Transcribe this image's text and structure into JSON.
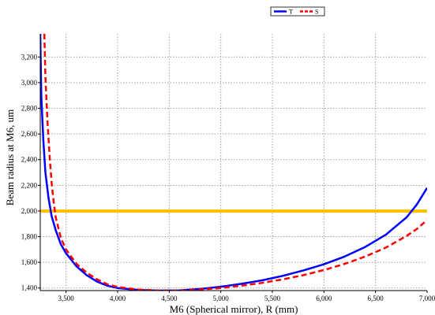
{
  "chart_data": {
    "type": "line",
    "xlabel": "M6 (Spherical mirror), R (mm)",
    "ylabel": "Beam radius at M6, um",
    "xlim": [
      3250,
      7000
    ],
    "ylim": [
      1380,
      3380
    ],
    "x_ticks": [
      {
        "value": 3500,
        "label": "3,500"
      },
      {
        "value": 4000,
        "label": "4,000"
      },
      {
        "value": 4500,
        "label": "4,500"
      },
      {
        "value": 5000,
        "label": "5,000"
      },
      {
        "value": 5500,
        "label": "5,500"
      },
      {
        "value": 6000,
        "label": "6,000"
      },
      {
        "value": 6500,
        "label": "6,500"
      },
      {
        "value": 7000,
        "label": "7,000"
      }
    ],
    "y_ticks": [
      {
        "value": 1400,
        "label": "1,400"
      },
      {
        "value": 1600,
        "label": "1,600"
      },
      {
        "value": 1800,
        "label": "1,800"
      },
      {
        "value": 2000,
        "label": "2,000"
      },
      {
        "value": 2200,
        "label": "2,200"
      },
      {
        "value": 2400,
        "label": "2,400"
      },
      {
        "value": 2600,
        "label": "2,600"
      },
      {
        "value": 2800,
        "label": "2,800"
      },
      {
        "value": 3000,
        "label": "3,000"
      },
      {
        "value": 3200,
        "label": "3,200"
      }
    ],
    "grid": true,
    "grid_style": "dotted",
    "legend_position": "top-right",
    "series": [
      {
        "name": "T",
        "color": "#0000ff",
        "style": "solid",
        "points": [
          [
            3250,
            3380
          ],
          [
            3260,
            2900
          ],
          [
            3280,
            2550
          ],
          [
            3300,
            2300
          ],
          [
            3330,
            2100
          ],
          [
            3360,
            1960
          ],
          [
            3400,
            1850
          ],
          [
            3450,
            1740
          ],
          [
            3500,
            1670
          ],
          [
            3600,
            1570
          ],
          [
            3700,
            1500
          ],
          [
            3800,
            1450
          ],
          [
            3900,
            1418
          ],
          [
            4000,
            1400
          ],
          [
            4200,
            1385
          ],
          [
            4400,
            1380
          ],
          [
            4600,
            1382
          ],
          [
            4800,
            1393
          ],
          [
            5000,
            1410
          ],
          [
            5200,
            1433
          ],
          [
            5400,
            1460
          ],
          [
            5600,
            1495
          ],
          [
            5800,
            1537
          ],
          [
            6000,
            1585
          ],
          [
            6200,
            1645
          ],
          [
            6400,
            1720
          ],
          [
            6600,
            1815
          ],
          [
            6800,
            1950
          ],
          [
            6900,
            2050
          ],
          [
            7000,
            2180
          ]
        ]
      },
      {
        "name": "S",
        "color": "#ff0000",
        "style": "dashed",
        "points": [
          [
            3290,
            3380
          ],
          [
            3300,
            3050
          ],
          [
            3320,
            2700
          ],
          [
            3340,
            2430
          ],
          [
            3360,
            2220
          ],
          [
            3380,
            2070
          ],
          [
            3400,
            1950
          ],
          [
            3450,
            1790
          ],
          [
            3500,
            1700
          ],
          [
            3600,
            1590
          ],
          [
            3700,
            1520
          ],
          [
            3800,
            1467
          ],
          [
            3900,
            1430
          ],
          [
            4000,
            1408
          ],
          [
            4200,
            1388
          ],
          [
            4400,
            1380
          ],
          [
            4600,
            1380
          ],
          [
            4800,
            1388
          ],
          [
            5000,
            1400
          ],
          [
            5200,
            1418
          ],
          [
            5400,
            1440
          ],
          [
            5600,
            1467
          ],
          [
            5800,
            1500
          ],
          [
            6000,
            1540
          ],
          [
            6200,
            1588
          ],
          [
            6400,
            1645
          ],
          [
            6600,
            1715
          ],
          [
            6800,
            1805
          ],
          [
            6900,
            1860
          ],
          [
            7000,
            1930
          ]
        ]
      }
    ],
    "reference_line": {
      "y": 2000,
      "color": "#ffc000"
    }
  }
}
